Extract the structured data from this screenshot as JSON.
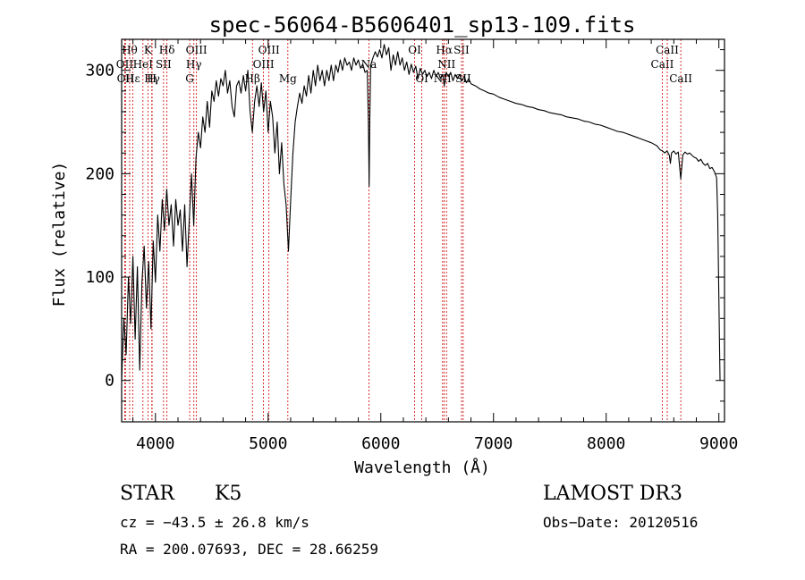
{
  "chart_data": {
    "type": "line",
    "title": "spec-56064-B5606401_sp13-109.fits",
    "xlabel": "Wavelength (Å)",
    "ylabel": "Flux (relative)",
    "xlim": [
      3700,
      9050
    ],
    "ylim": [
      -40,
      330
    ],
    "x_ticks": [
      4000,
      5000,
      6000,
      7000,
      8000,
      9000
    ],
    "y_ticks": [
      0,
      100,
      200,
      300
    ],
    "grid": false,
    "series": [
      {
        "name": "flux",
        "points": [
          [
            3700,
            0
          ],
          [
            3720,
            60
          ],
          [
            3740,
            25
          ],
          [
            3760,
            100
          ],
          [
            3780,
            55
          ],
          [
            3800,
            120
          ],
          [
            3820,
            40
          ],
          [
            3840,
            110
          ],
          [
            3860,
            10
          ],
          [
            3880,
            95
          ],
          [
            3900,
            130
          ],
          [
            3920,
            70
          ],
          [
            3940,
            115
          ],
          [
            3960,
            50
          ],
          [
            3980,
            135
          ],
          [
            4000,
            95
          ],
          [
            4020,
            160
          ],
          [
            4040,
            125
          ],
          [
            4060,
            175
          ],
          [
            4080,
            145
          ],
          [
            4100,
            185
          ],
          [
            4120,
            150
          ],
          [
            4140,
            170
          ],
          [
            4160,
            130
          ],
          [
            4180,
            175
          ],
          [
            4200,
            150
          ],
          [
            4220,
            165
          ],
          [
            4240,
            125
          ],
          [
            4260,
            170
          ],
          [
            4280,
            110
          ],
          [
            4300,
            155
          ],
          [
            4320,
            200
          ],
          [
            4340,
            150
          ],
          [
            4360,
            215
          ],
          [
            4380,
            240
          ],
          [
            4400,
            225
          ],
          [
            4420,
            255
          ],
          [
            4440,
            240
          ],
          [
            4460,
            270
          ],
          [
            4480,
            245
          ],
          [
            4500,
            280
          ],
          [
            4520,
            270
          ],
          [
            4540,
            290
          ],
          [
            4560,
            275
          ],
          [
            4580,
            292
          ],
          [
            4600,
            285
          ],
          [
            4620,
            300
          ],
          [
            4640,
            278
          ],
          [
            4660,
            290
          ],
          [
            4680,
            265
          ],
          [
            4700,
            255
          ],
          [
            4720,
            285
          ],
          [
            4740,
            290
          ],
          [
            4760,
            278
          ],
          [
            4780,
            295
          ],
          [
            4800,
            280
          ],
          [
            4820,
            300
          ],
          [
            4840,
            260
          ],
          [
            4860,
            240
          ],
          [
            4880,
            270
          ],
          [
            4900,
            285
          ],
          [
            4920,
            265
          ],
          [
            4940,
            288
          ],
          [
            4960,
            260
          ],
          [
            4980,
            280
          ],
          [
            5000,
            240
          ],
          [
            5020,
            270
          ],
          [
            5040,
            255
          ],
          [
            5060,
            220
          ],
          [
            5080,
            250
          ],
          [
            5100,
            200
          ],
          [
            5120,
            230
          ],
          [
            5140,
            190
          ],
          [
            5160,
            170
          ],
          [
            5180,
            125
          ],
          [
            5200,
            175
          ],
          [
            5220,
            220
          ],
          [
            5240,
            250
          ],
          [
            5260,
            265
          ],
          [
            5280,
            278
          ],
          [
            5300,
            268
          ],
          [
            5320,
            285
          ],
          [
            5340,
            275
          ],
          [
            5360,
            295
          ],
          [
            5380,
            278
          ],
          [
            5400,
            300
          ],
          [
            5420,
            285
          ],
          [
            5440,
            305
          ],
          [
            5460,
            290
          ],
          [
            5480,
            300
          ],
          [
            5500,
            285
          ],
          [
            5520,
            300
          ],
          [
            5540,
            290
          ],
          [
            5560,
            305
          ],
          [
            5580,
            290
          ],
          [
            5600,
            305
          ],
          [
            5620,
            298
          ],
          [
            5640,
            310
          ],
          [
            5660,
            300
          ],
          [
            5680,
            312
          ],
          [
            5700,
            305
          ],
          [
            5720,
            308
          ],
          [
            5740,
            300
          ],
          [
            5760,
            312
          ],
          [
            5780,
            305
          ],
          [
            5800,
            310
          ],
          [
            5820,
            302
          ],
          [
            5840,
            306
          ],
          [
            5860,
            298
          ],
          [
            5880,
            300
          ],
          [
            5890,
            250
          ],
          [
            5896,
            188
          ],
          [
            5902,
            250
          ],
          [
            5910,
            305
          ],
          [
            5930,
            312
          ],
          [
            5950,
            318
          ],
          [
            5970,
            313
          ],
          [
            5990,
            320
          ],
          [
            6010,
            312
          ],
          [
            6030,
            325
          ],
          [
            6050,
            315
          ],
          [
            6070,
            322
          ],
          [
            6090,
            300
          ],
          [
            6110,
            315
          ],
          [
            6130,
            305
          ],
          [
            6150,
            318
          ],
          [
            6170,
            305
          ],
          [
            6190,
            312
          ],
          [
            6210,
            300
          ],
          [
            6230,
            308
          ],
          [
            6250,
            296
          ],
          [
            6270,
            306
          ],
          [
            6290,
            298
          ],
          [
            6310,
            304
          ],
          [
            6330,
            292
          ],
          [
            6350,
            302
          ],
          [
            6370,
            296
          ],
          [
            6390,
            300
          ],
          [
            6410,
            294
          ],
          [
            6430,
            298
          ],
          [
            6450,
            292
          ],
          [
            6470,
            300
          ],
          [
            6490,
            294
          ],
          [
            6510,
            298
          ],
          [
            6530,
            292
          ],
          [
            6550,
            296
          ],
          [
            6563,
            285
          ],
          [
            6580,
            298
          ],
          [
            6600,
            294
          ],
          [
            6620,
            298
          ],
          [
            6640,
            290
          ],
          [
            6660,
            296
          ],
          [
            6680,
            292
          ],
          [
            6700,
            296
          ],
          [
            6720,
            290
          ],
          [
            6740,
            294
          ],
          [
            6760,
            288
          ],
          [
            6780,
            292
          ],
          [
            6800,
            287
          ],
          [
            6840,
            285
          ],
          [
            6880,
            282
          ],
          [
            6920,
            280
          ],
          [
            6960,
            278
          ],
          [
            7000,
            277
          ],
          [
            7050,
            274
          ],
          [
            7100,
            272
          ],
          [
            7150,
            270
          ],
          [
            7200,
            268
          ],
          [
            7250,
            267
          ],
          [
            7300,
            265
          ],
          [
            7350,
            264
          ],
          [
            7400,
            262
          ],
          [
            7450,
            261
          ],
          [
            7500,
            259
          ],
          [
            7550,
            258
          ],
          [
            7600,
            257
          ],
          [
            7650,
            255
          ],
          [
            7700,
            254
          ],
          [
            7750,
            253
          ],
          [
            7800,
            251
          ],
          [
            7850,
            250
          ],
          [
            7900,
            248
          ],
          [
            7950,
            247
          ],
          [
            8000,
            245
          ],
          [
            8050,
            243
          ],
          [
            8100,
            241
          ],
          [
            8150,
            240
          ],
          [
            8200,
            238
          ],
          [
            8250,
            236
          ],
          [
            8300,
            234
          ],
          [
            8350,
            232
          ],
          [
            8400,
            230
          ],
          [
            8450,
            227
          ],
          [
            8480,
            223
          ],
          [
            8500,
            222
          ],
          [
            8520,
            220
          ],
          [
            8540,
            222
          ],
          [
            8560,
            218
          ],
          [
            8570,
            210
          ],
          [
            8580,
            220
          ],
          [
            8600,
            222
          ],
          [
            8620,
            219
          ],
          [
            8640,
            221
          ],
          [
            8662,
            195
          ],
          [
            8680,
            218
          ],
          [
            8700,
            221
          ],
          [
            8720,
            219
          ],
          [
            8740,
            220
          ],
          [
            8760,
            218
          ],
          [
            8780,
            216
          ],
          [
            8800,
            215
          ],
          [
            8820,
            212
          ],
          [
            8840,
            214
          ],
          [
            8860,
            210
          ],
          [
            8880,
            208
          ],
          [
            8900,
            210
          ],
          [
            8920,
            205
          ],
          [
            8940,
            206
          ],
          [
            8960,
            202
          ],
          [
            8980,
            196
          ],
          [
            8990,
            160
          ],
          [
            9000,
            80
          ],
          [
            9010,
            0
          ]
        ]
      }
    ],
    "lines": [
      {
        "x": 3771,
        "label": "Hθ",
        "row": 0
      },
      {
        "x": 3727,
        "label": "OII",
        "row": 1
      },
      {
        "x": 3734,
        "label": "OII",
        "row": 2
      },
      {
        "x": 3798,
        "label": "Hε",
        "row": 2
      },
      {
        "x": 3889,
        "label": "HeI",
        "row": 1
      },
      {
        "x": 3933,
        "label": "K",
        "row": 0
      },
      {
        "x": 3968,
        "label": "H",
        "row": 2
      },
      {
        "x": 3970,
        "label": "Hγ",
        "row": 2
      },
      {
        "x": 4072,
        "label": "SII",
        "row": 1
      },
      {
        "x": 4102,
        "label": "Hδ",
        "row": 0
      },
      {
        "x": 4304,
        "label": "G",
        "row": 2
      },
      {
        "x": 4341,
        "label": "Hγ",
        "row": 1
      },
      {
        "x": 4364,
        "label": "OIII",
        "row": 0
      },
      {
        "x": 4861,
        "label": "Hβ",
        "row": 2
      },
      {
        "x": 4959,
        "label": "OIII",
        "row": 1
      },
      {
        "x": 5007,
        "label": "OIII",
        "row": 0
      },
      {
        "x": 5175,
        "label": "Mg",
        "row": 2
      },
      {
        "x": 5894,
        "label": "Na",
        "row": 1
      },
      {
        "x": 6300,
        "label": "OI",
        "row": 0
      },
      {
        "x": 6364,
        "label": "OI",
        "row": 2
      },
      {
        "x": 6548,
        "label": "NII",
        "row": 2
      },
      {
        "x": 6563,
        "label": "Hα",
        "row": 0
      },
      {
        "x": 6583,
        "label": "NII",
        "row": 1
      },
      {
        "x": 6716,
        "label": "SII",
        "row": 0
      },
      {
        "x": 6731,
        "label": "SII",
        "row": 2
      },
      {
        "x": 8498,
        "label": "CaII",
        "row": 1
      },
      {
        "x": 8542,
        "label": "CaII",
        "row": 0
      },
      {
        "x": 8662,
        "label": "CaII",
        "row": 2
      }
    ]
  },
  "info": {
    "class_label": "STAR",
    "subclass": "K5",
    "survey": "LAMOST DR3",
    "cz": "cz = −43.5 ± 26.8 km/s",
    "obs_date": "Obs−Date: 20120516",
    "coords": "RA = 200.07693, DEC =  28.66259"
  }
}
